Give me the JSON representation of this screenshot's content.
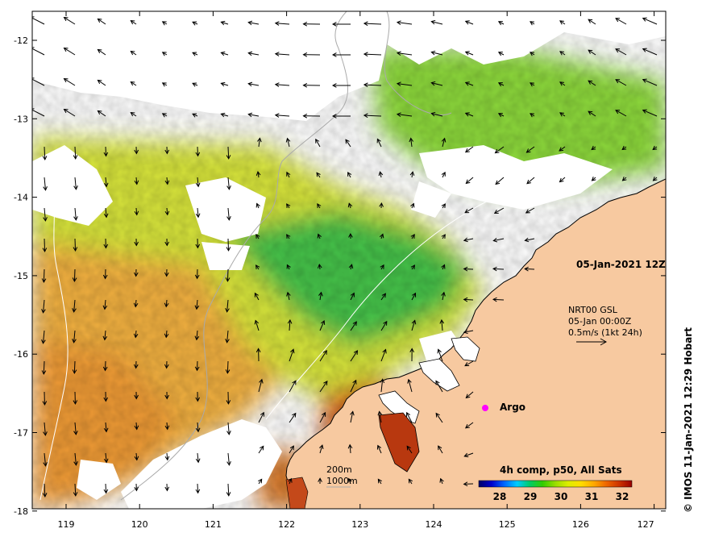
{
  "map": {
    "x_ticks": [
      "119",
      "120",
      "121",
      "122",
      "123",
      "124",
      "125",
      "126",
      "127"
    ],
    "y_ticks": [
      "-12",
      "-13",
      "-14",
      "-15",
      "-16",
      "-17",
      "-18"
    ],
    "date_label": "05-Jan-2021 12Z",
    "current_info": [
      "NRT00 GSL",
      "05-Jan 00:00Z",
      "0.5m/s (1kt 24h)"
    ],
    "argo_label": "Argo",
    "contour_legend": [
      "200m",
      "1000m"
    ],
    "credit": "© IMOS 11-Jan-2021 12:29 Hobart",
    "colorbar": {
      "title": "4h comp, p50, All Sats",
      "ticks": [
        "28",
        "29",
        "30",
        "31",
        "32"
      ],
      "colors": [
        "#000066",
        "#0000cc",
        "#0066ff",
        "#00ccff",
        "#00cc66",
        "#33cc00",
        "#99dd00",
        "#ddee00",
        "#ffdd00",
        "#ffaa00",
        "#ee6600",
        "#cc3300",
        "#990000"
      ]
    },
    "colors": {
      "land": "#f7c9a0",
      "land_edge": "#000000",
      "argo_marker": "#ff00ff",
      "sst_warm": "#f2a23a",
      "sst_mid": "#d8e83a",
      "sst_cool": "#4cc83c",
      "no_data": "#ffffff"
    }
  }
}
